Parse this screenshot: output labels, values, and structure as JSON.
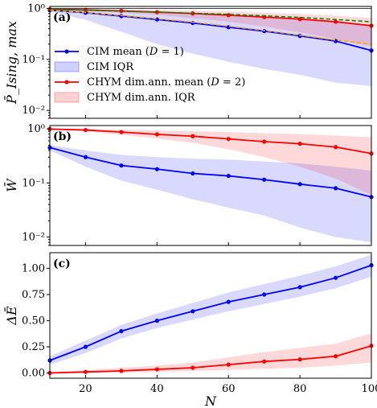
{
  "chart_data": [
    {
      "type": "line",
      "panel_label": "(a)",
      "ylabel": "P̄_Ising, max",
      "yscale": "log",
      "ylim": [
        0.007,
        1.1
      ],
      "yticks": [
        1,
        0.1,
        0.01
      ],
      "ytick_labels": [
        "10⁰",
        "10⁻¹",
        "10⁻²"
      ],
      "xlim": [
        10,
        100
      ],
      "x": [
        10,
        20,
        30,
        40,
        50,
        60,
        70,
        80,
        90,
        100
      ],
      "legend_position": "center-left",
      "series": [
        {
          "name": "CIM mean (D = 1)",
          "color": "#0000ff",
          "kind": "mean",
          "values": [
            0.93,
            0.83,
            0.71,
            0.61,
            0.52,
            0.43,
            0.36,
            0.29,
            0.23,
            0.15
          ],
          "band": {
            "name": "CIM IQR",
            "lower": [
              0.88,
              0.6,
              0.35,
              0.2,
              0.13,
              0.09,
              0.065,
              0.05,
              0.035,
              0.03
            ],
            "upper": [
              0.97,
              0.95,
              0.9,
              0.86,
              0.82,
              0.78,
              0.73,
              0.66,
              0.57,
              0.45
            ]
          }
        },
        {
          "name": "CHYM dim.ann. mean (D = 2)",
          "color": "#ff0000",
          "kind": "mean",
          "values": [
            0.97,
            0.94,
            0.9,
            0.85,
            0.8,
            0.74,
            0.68,
            0.62,
            0.55,
            0.46
          ],
          "band": {
            "name": "CHYM dim.ann. IQR",
            "lower": [
              0.95,
              0.9,
              0.83,
              0.75,
              0.65,
              0.55,
              0.44,
              0.34,
              0.25,
              0.18
            ],
            "upper": [
              0.99,
              0.98,
              0.96,
              0.94,
              0.91,
              0.88,
              0.83,
              0.78,
              0.72,
              0.65
            ]
          }
        },
        {
          "name": "",
          "color": "#008000",
          "kind": "dashed",
          "values": [
            0.96,
            0.93,
            0.89,
            0.85,
            0.81,
            0.77,
            0.72,
            0.67,
            0.61,
            0.55
          ]
        },
        {
          "name": "",
          "color": "#ffa500",
          "kind": "dashed",
          "values": [
            0.93,
            0.84,
            0.73,
            0.63,
            0.54,
            0.45,
            0.37,
            0.3,
            0.24,
            0.2
          ]
        },
        {
          "name": "",
          "color": "#000000",
          "kind": "thin",
          "values": [
            1,
            1,
            1,
            1,
            1,
            1,
            1,
            1,
            1,
            1
          ]
        }
      ]
    },
    {
      "type": "line",
      "panel_label": "(b)",
      "ylabel": "W̄",
      "yscale": "log",
      "ylim": [
        0.007,
        1.15
      ],
      "yticks": [
        1,
        0.1,
        0.01
      ],
      "ytick_labels": [
        "10⁰",
        "10⁻¹",
        "10⁻²"
      ],
      "xlim": [
        10,
        100
      ],
      "x": [
        10,
        20,
        30,
        40,
        50,
        60,
        70,
        80,
        90,
        100
      ],
      "series": [
        {
          "name": "CIM mean (D = 1)",
          "color": "#0000ff",
          "kind": "mean",
          "values": [
            0.45,
            0.3,
            0.21,
            0.18,
            0.15,
            0.135,
            0.115,
            0.095,
            0.08,
            0.055
          ],
          "band": {
            "lower": [
              0.4,
              0.2,
              0.11,
              0.075,
              0.05,
              0.035,
              0.025,
              0.015,
              0.01,
              0.008
            ],
            "upper": [
              0.5,
              0.4,
              0.33,
              0.3,
              0.28,
              0.27,
              0.25,
              0.23,
              0.2,
              0.17
            ]
          }
        },
        {
          "name": "CHYM dim.ann. mean (D = 2)",
          "color": "#ff0000",
          "kind": "mean",
          "values": [
            0.99,
            0.95,
            0.87,
            0.79,
            0.73,
            0.65,
            0.58,
            0.53,
            0.46,
            0.35
          ],
          "band": {
            "lower": [
              0.98,
              0.9,
              0.78,
              0.66,
              0.55,
              0.42,
              0.3,
              0.2,
              0.12,
              0.06
            ],
            "upper": [
              1,
              0.99,
              0.96,
              0.93,
              0.9,
              0.87,
              0.83,
              0.8,
              0.75,
              0.7
            ]
          }
        }
      ]
    },
    {
      "type": "line",
      "panel_label": "(c)",
      "ylabel": "ΔĒ",
      "yscale": "linear",
      "ylim": [
        -0.05,
        1.15
      ],
      "yticks": [
        0,
        0.25,
        0.5,
        0.75,
        1.0
      ],
      "ytick_labels": [
        "0.00",
        "0.25",
        "0.50",
        "0.75",
        "1.00"
      ],
      "xlim": [
        10,
        100
      ],
      "xticks": [
        20,
        40,
        60,
        80,
        100
      ],
      "xtick_labels": [
        "20",
        "40",
        "60",
        "80",
        "100"
      ],
      "xlabel": "N",
      "x": [
        10,
        20,
        30,
        40,
        50,
        60,
        70,
        80,
        90,
        100
      ],
      "series": [
        {
          "name": "CIM mean (D = 1)",
          "color": "#0000ff",
          "kind": "mean",
          "values": [
            0.12,
            0.25,
            0.4,
            0.5,
            0.59,
            0.68,
            0.75,
            0.82,
            0.91,
            1.03
          ],
          "band": {
            "lower": [
              0.08,
              0.19,
              0.33,
              0.43,
              0.51,
              0.59,
              0.66,
              0.73,
              0.81,
              0.92
            ],
            "upper": [
              0.16,
              0.31,
              0.46,
              0.57,
              0.67,
              0.77,
              0.85,
              0.93,
              1.02,
              1.13
            ]
          }
        },
        {
          "name": "CHYM dim.ann. mean (D = 2)",
          "color": "#ff0000",
          "kind": "mean",
          "values": [
            0.0,
            0.01,
            0.02,
            0.035,
            0.05,
            0.08,
            0.11,
            0.13,
            0.16,
            0.26
          ],
          "band": {
            "lower": [
              0.0,
              0.0,
              0.005,
              0.01,
              0.02,
              0.03,
              0.04,
              0.05,
              0.07,
              0.1
            ],
            "upper": [
              0.01,
              0.025,
              0.05,
              0.07,
              0.1,
              0.15,
              0.2,
              0.24,
              0.28,
              0.38
            ]
          }
        }
      ]
    }
  ],
  "legend": {
    "items": [
      {
        "kind": "line",
        "color": "#0000ff",
        "prefix": "CIM mean (",
        "var": "D",
        "suffix": " = 1)"
      },
      {
        "kind": "patch",
        "color": "#0000ff",
        "prefix": "CIM IQR",
        "var": "",
        "suffix": ""
      },
      {
        "kind": "line",
        "color": "#ff0000",
        "prefix": "CHYM dim.ann. mean (",
        "var": "D",
        "suffix": " = 2)"
      },
      {
        "kind": "patch",
        "color": "#ff0000",
        "prefix": "CHYM dim.ann. IQR",
        "var": "",
        "suffix": ""
      }
    ]
  }
}
